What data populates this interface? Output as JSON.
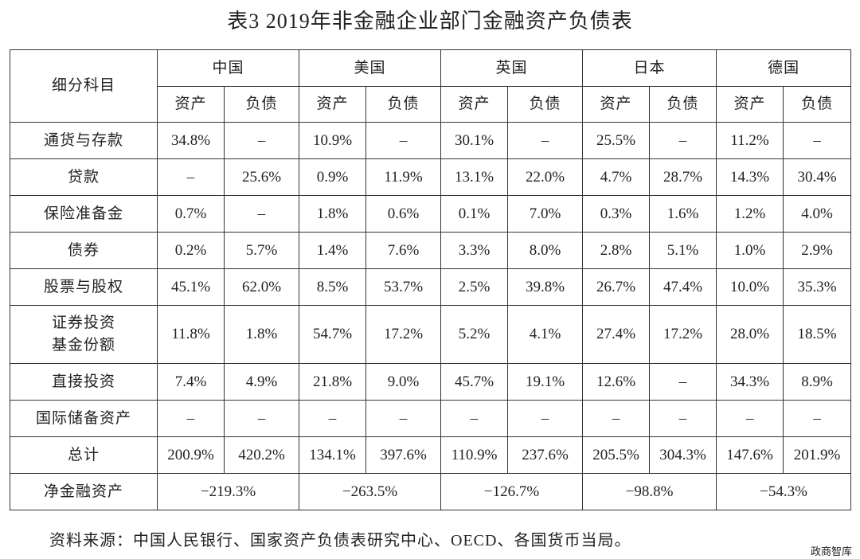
{
  "title": "表3  2019年非金融企业部门金融资产负债表",
  "table": {
    "corner": "细分科目",
    "groups": [
      "中国",
      "美国",
      "英国",
      "日本",
      "德国"
    ],
    "subheaders": [
      "资产",
      "负债"
    ],
    "rows": [
      {
        "label": "通货与存款",
        "cells": [
          "34.8%",
          "–",
          "10.9%",
          "–",
          "30.1%",
          "–",
          "25.5%",
          "–",
          "11.2%",
          "–"
        ]
      },
      {
        "label": "贷款",
        "cells": [
          "–",
          "25.6%",
          "0.9%",
          "11.9%",
          "13.1%",
          "22.0%",
          "4.7%",
          "28.7%",
          "14.3%",
          "30.4%"
        ]
      },
      {
        "label": "保险准备金",
        "cells": [
          "0.7%",
          "–",
          "1.8%",
          "0.6%",
          "0.1%",
          "7.0%",
          "0.3%",
          "1.6%",
          "1.2%",
          "4.0%"
        ]
      },
      {
        "label": "债券",
        "cells": [
          "0.2%",
          "5.7%",
          "1.4%",
          "7.6%",
          "3.3%",
          "8.0%",
          "2.8%",
          "5.1%",
          "1.0%",
          "2.9%"
        ]
      },
      {
        "label": "股票与股权",
        "cells": [
          "45.1%",
          "62.0%",
          "8.5%",
          "53.7%",
          "2.5%",
          "39.8%",
          "26.7%",
          "47.4%",
          "10.0%",
          "35.3%"
        ]
      },
      {
        "label": "证券投资\n基金份额",
        "cells": [
          "11.8%",
          "1.8%",
          "54.7%",
          "17.2%",
          "5.2%",
          "4.1%",
          "27.4%",
          "17.2%",
          "28.0%",
          "18.5%"
        ]
      },
      {
        "label": "直接投资",
        "cells": [
          "7.4%",
          "4.9%",
          "21.8%",
          "9.0%",
          "45.7%",
          "19.1%",
          "12.6%",
          "–",
          "34.3%",
          "8.9%"
        ]
      },
      {
        "label": "国际储备资产",
        "cells": [
          "–",
          "–",
          "–",
          "–",
          "–",
          "–",
          "–",
          "–",
          "–",
          "–"
        ]
      },
      {
        "label": "总计",
        "cells": [
          "200.9%",
          "420.2%",
          "134.1%",
          "397.6%",
          "110.9%",
          "237.6%",
          "205.5%",
          "304.3%",
          "147.6%",
          "201.9%"
        ]
      }
    ],
    "net": {
      "label": "净金融资产",
      "cells": [
        "−219.3%",
        "−263.5%",
        "−126.7%",
        "−98.8%",
        "−54.3%"
      ]
    }
  },
  "source": "资料来源：中国人民银行、国家资产负债表研究中心、OECD、各国货币当局。",
  "logo": "政商智库"
}
